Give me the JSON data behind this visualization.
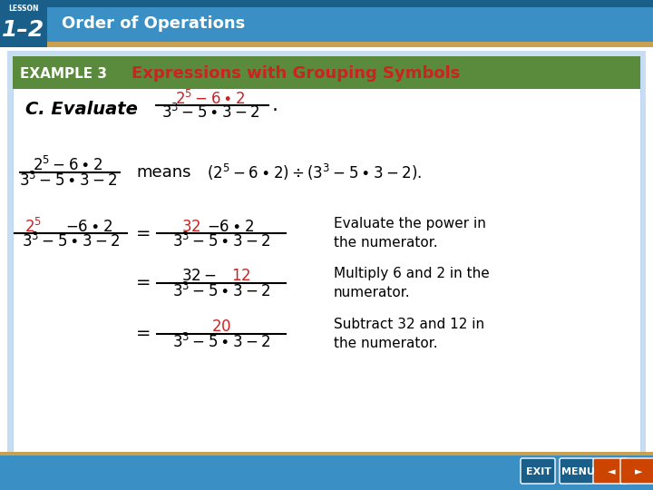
{
  "bg_color": "#ffffff",
  "header_bg": "#3a8fc4",
  "header_dark": "#1a5f8a",
  "example_bg": "#5a8a3c",
  "example_text": "EXAMPLE 3",
  "title_text": "Expressions with Grouping Symbols",
  "title_color": "#cc2222",
  "lesson_label": "1–2",
  "lesson_sub": "Order of Operations",
  "red_color": "#cc2222",
  "black_color": "#000000",
  "gold_color": "#c8a050",
  "annotation1": "Evaluate the power in\nthe numerator.",
  "annotation2": "Multiply 6 and 2 in the\nnumerator.",
  "annotation3": "Subtract 32 and 12 in\nthe numerator."
}
